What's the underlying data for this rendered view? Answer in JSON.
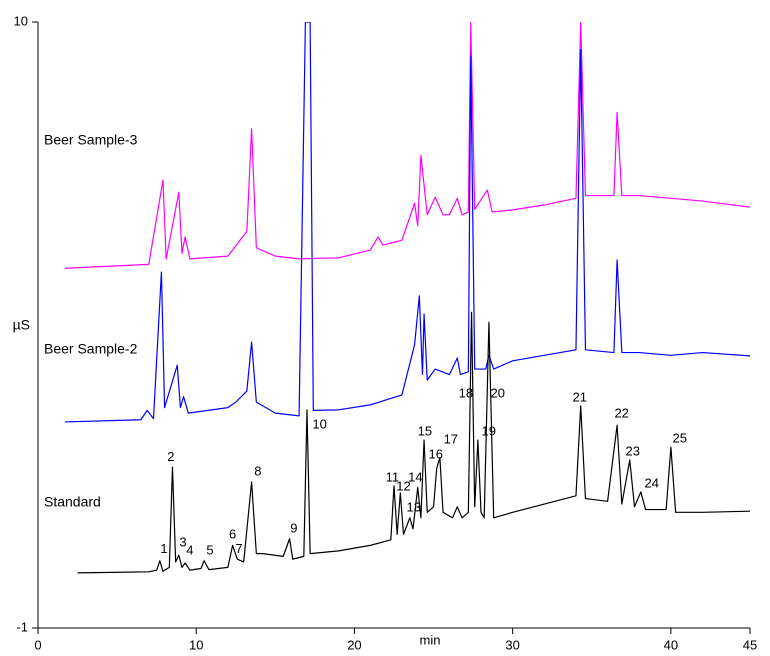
{
  "chart_data": {
    "type": "line",
    "x_label": "min",
    "y_label": "µS",
    "xlim": [
      0,
      45
    ],
    "ylim": [
      -1,
      10
    ],
    "xticks": [
      0,
      10,
      20,
      30,
      40,
      45
    ],
    "yticks": [
      -1,
      10
    ],
    "series": [
      {
        "name": "Beer Sample-3",
        "color": "#ff00ff",
        "x": [
          1.7,
          7.0,
          7.9,
          8.1,
          8.9,
          9.1,
          9.3,
          9.6,
          12.0,
          13.2,
          13.5,
          13.8,
          15.0,
          16.5,
          19.0,
          21.0,
          21.5,
          21.8,
          23.0,
          23.8,
          24.0,
          24.2,
          24.6,
          25.1,
          25.6,
          26.0,
          26.5,
          26.8,
          27.2,
          27.35,
          27.6,
          28.4,
          28.7,
          30.0,
          32.0,
          34.0,
          34.3,
          34.6,
          36.4,
          36.6,
          36.9,
          38.0,
          40.0,
          42.0,
          45.0
        ],
        "values": [
          5.53,
          5.6,
          7.13,
          5.7,
          6.91,
          5.8,
          6.1,
          5.7,
          5.75,
          6.2,
          8.06,
          5.9,
          5.75,
          5.7,
          5.72,
          5.86,
          6.1,
          5.95,
          6.04,
          6.71,
          6.3,
          7.58,
          6.5,
          6.82,
          6.5,
          6.5,
          6.8,
          6.5,
          6.55,
          10,
          6.6,
          6.95,
          6.55,
          6.59,
          6.68,
          6.8,
          10,
          6.85,
          6.85,
          8.36,
          6.85,
          6.85,
          6.8,
          6.75,
          6.64
        ]
      },
      {
        "name": "Beer Sample-2",
        "color": "#0000ff",
        "x": [
          1.7,
          6.5,
          6.9,
          7.3,
          7.8,
          8.0,
          8.8,
          9.0,
          9.2,
          9.5,
          12.0,
          12.5,
          13.2,
          13.5,
          13.8,
          15.0,
          16.5,
          16.9,
          17.2,
          17.4,
          19.0,
          21.0,
          23.0,
          23.8,
          24.1,
          24.3,
          24.4,
          24.6,
          25.1,
          26.0,
          26.5,
          26.7,
          27.2,
          27.35,
          27.6,
          28.3,
          28.5,
          28.8,
          30.0,
          32.0,
          34.0,
          34.3,
          34.6,
          36.4,
          36.6,
          36.9,
          38.0,
          40.0,
          42.0,
          45.0
        ],
        "values": [
          2.74,
          2.78,
          2.95,
          2.8,
          5.46,
          3.0,
          3.77,
          3.0,
          3.2,
          2.9,
          3.0,
          3.1,
          3.3,
          4.19,
          3.1,
          2.9,
          2.85,
          10,
          10,
          2.95,
          2.96,
          3.05,
          3.23,
          4.14,
          5.03,
          3.6,
          4.7,
          3.5,
          3.7,
          3.6,
          3.9,
          3.6,
          3.65,
          9.38,
          3.7,
          3.7,
          3.95,
          3.7,
          3.85,
          3.95,
          4.05,
          9.5,
          4.05,
          4.0,
          5.68,
          4.0,
          4.0,
          3.95,
          4.0,
          3.94
        ]
      },
      {
        "name": "Standard",
        "color": "#000000",
        "x": [
          2.5,
          7.0,
          7.5,
          7.7,
          7.9,
          8.3,
          8.5,
          8.7,
          8.9,
          9.1,
          9.3,
          9.6,
          10.3,
          10.5,
          10.8,
          12.0,
          12.3,
          12.6,
          13.0,
          13.5,
          13.8,
          14.2,
          15.5,
          15.9,
          16.1,
          16.8,
          17.0,
          17.2,
          19.0,
          21.0,
          22.3,
          22.5,
          22.7,
          22.9,
          23.1,
          23.5,
          23.7,
          24.0,
          24.2,
          24.4,
          24.6,
          25.0,
          25.2,
          25.4,
          25.6,
          26.2,
          26.5,
          26.8,
          27.2,
          27.4,
          27.6,
          27.8,
          28.0,
          28.2,
          28.5,
          28.8,
          30.0,
          32.0,
          34.0,
          34.3,
          34.6,
          36.0,
          36.6,
          36.9,
          37.4,
          37.7,
          38.1,
          38.4,
          39.7,
          40.0,
          40.3,
          42.0,
          45.0
        ],
        "values": [
          0.0,
          0.02,
          0.05,
          0.22,
          0.03,
          0.1,
          1.92,
          0.2,
          0.32,
          0.1,
          0.18,
          0.05,
          0.08,
          0.22,
          0.06,
          0.1,
          0.5,
          0.25,
          0.2,
          1.65,
          0.35,
          0.35,
          0.3,
          0.62,
          0.25,
          0.3,
          2.96,
          0.35,
          0.4,
          0.5,
          0.6,
          1.58,
          0.7,
          1.45,
          0.7,
          1.0,
          0.8,
          1.55,
          1.0,
          2.41,
          1.1,
          1.2,
          1.9,
          2.09,
          1.1,
          1.0,
          1.2,
          1.0,
          1.1,
          4.73,
          1.2,
          2.41,
          1.1,
          1.0,
          4.55,
          1.0,
          1.1,
          1.25,
          1.4,
          3.03,
          1.35,
          1.3,
          2.68,
          1.25,
          2.05,
          1.2,
          1.47,
          1.15,
          1.15,
          2.28,
          1.1,
          1.1,
          1.12
        ]
      }
    ],
    "annotations": [
      {
        "text": "1",
        "x": 7.96,
        "y": 0.42
      },
      {
        "text": "2",
        "x": 8.4,
        "y": 2.09
      },
      {
        "text": "3",
        "x": 9.16,
        "y": 0.54
      },
      {
        "text": "4",
        "x": 9.6,
        "y": 0.4
      },
      {
        "text": "5",
        "x": 10.87,
        "y": 0.4
      },
      {
        "text": "6",
        "x": 12.3,
        "y": 0.69
      },
      {
        "text": "7",
        "x": 12.7,
        "y": 0.42
      },
      {
        "text": "8",
        "x": 13.9,
        "y": 1.83
      },
      {
        "text": "9",
        "x": 16.17,
        "y": 0.8
      },
      {
        "text": "10",
        "x": 17.8,
        "y": 2.68
      },
      {
        "text": "11",
        "x": 22.4,
        "y": 1.72
      },
      {
        "text": "12",
        "x": 23.1,
        "y": 1.56
      },
      {
        "text": "13",
        "x": 23.75,
        "y": 1.18
      },
      {
        "text": "14",
        "x": 23.85,
        "y": 1.72
      },
      {
        "text": "15",
        "x": 24.45,
        "y": 2.56
      },
      {
        "text": "16",
        "x": 25.14,
        "y": 2.14
      },
      {
        "text": "17",
        "x": 26.09,
        "y": 2.41
      },
      {
        "text": "18",
        "x": 27.04,
        "y": 3.25
      },
      {
        "text": "19",
        "x": 28.49,
        "y": 2.56
      },
      {
        "text": "20",
        "x": 29.06,
        "y": 3.25
      },
      {
        "text": "21",
        "x": 34.24,
        "y": 3.17
      },
      {
        "text": "22",
        "x": 36.89,
        "y": 2.88
      },
      {
        "text": "23",
        "x": 37.59,
        "y": 2.19
      },
      {
        "text": "24",
        "x": 38.79,
        "y": 1.61
      },
      {
        "text": "25",
        "x": 40.56,
        "y": 2.43
      }
    ]
  }
}
